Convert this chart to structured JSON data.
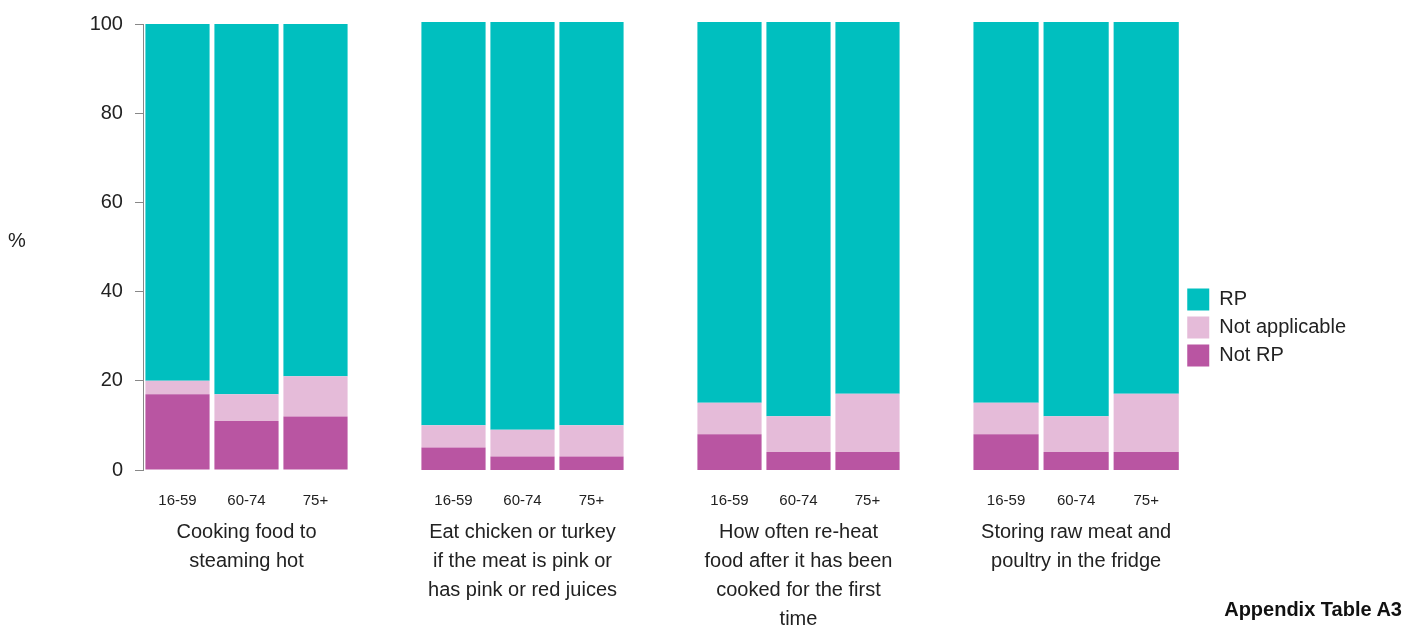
{
  "chart_data": [
    {
      "type": "bar",
      "stacked": true,
      "xlabel": "Cooking food to steaming hot",
      "ylabel": "%",
      "categories": [
        "16-59",
        "60-74",
        "75+"
      ],
      "ylim": [
        0,
        100
      ],
      "yticks": [
        0,
        20,
        40,
        60,
        80,
        100
      ],
      "grid": false,
      "legend": false,
      "series": [
        {
          "color": "#b955a2",
          "values": [
            17,
            11,
            12
          ]
        },
        {
          "color": "#e5bbd9",
          "values": [
            3,
            6,
            9
          ]
        },
        {
          "color": "#00bfbf",
          "values": [
            80,
            83,
            79
          ]
        }
      ]
    },
    {
      "type": "bar",
      "stacked": true,
      "xlabel": "Eat chicken or turkey if the meat is pink or has pink or red juices",
      "categories": [
        "16-59",
        "60-74",
        "75+"
      ],
      "ylim": [
        0,
        100
      ],
      "tick_labels": "x",
      "grid": false,
      "legend": false,
      "series": [
        {
          "color": "#b955a2",
          "values": [
            5,
            3,
            3
          ]
        },
        {
          "color": "#e5bbd9",
          "values": [
            5,
            6,
            7
          ]
        },
        {
          "color": "#00bfbf",
          "values": [
            90,
            91,
            90
          ]
        }
      ]
    },
    {
      "type": "bar",
      "stacked": true,
      "xlabel": "How often re-heat food after it has been cooked for the first time",
      "categories": [
        "16-59",
        "60-74",
        "75+"
      ],
      "ylim": [
        0,
        100
      ],
      "tick_labels": "x",
      "grid": false,
      "legend": false,
      "series": [
        {
          "color": "#b955a2",
          "values": [
            8,
            4,
            4
          ]
        },
        {
          "color": "#e5bbd9",
          "values": [
            7,
            8,
            13
          ]
        },
        {
          "color": "#00bfbf",
          "values": [
            85,
            88,
            83
          ]
        }
      ]
    },
    {
      "type": "bar",
      "stacked": true,
      "xlabel": "Storing raw meat and poultry in the fridge",
      "categories": [
        "16-59",
        "60-74",
        "75+"
      ],
      "ylim": [
        0,
        100
      ],
      "tick_labels": "x",
      "grid": false,
      "legend": "right",
      "annotations": [
        "Appendix Table A3"
      ],
      "series": [
        {
          "name": "Not RP",
          "color": "#b955a2",
          "values": [
            8,
            4,
            4
          ]
        },
        {
          "name": "Not applicable",
          "color": "#e5bbd9",
          "values": [
            7,
            8,
            13
          ]
        },
        {
          "name": "RP",
          "color": "#00bfbf",
          "values": [
            85,
            88,
            83
          ]
        }
      ]
    }
  ]
}
